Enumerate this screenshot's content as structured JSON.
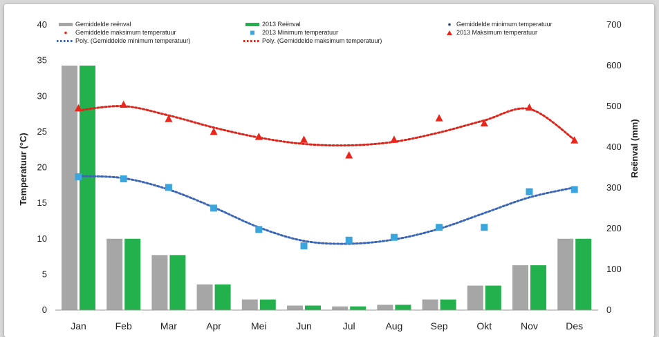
{
  "chart_data": {
    "type": "bar",
    "title": "",
    "categories": [
      "Jan",
      "Feb",
      "Mar",
      "Apr",
      "Mei",
      "Jun",
      "Jul",
      "Aug",
      "Sep",
      "Okt",
      "Nov",
      "Des"
    ],
    "ylabel_left": "Temperatuur (°C)",
    "ylabel_right": "Reënval (mm)",
    "ylim_left": [
      0,
      40
    ],
    "ylim_right": [
      0,
      700
    ],
    "yticks_left": [
      "0",
      "5",
      "10",
      "15",
      "20",
      "25",
      "30",
      "35",
      "40"
    ],
    "yticks_right": [
      "0",
      "100",
      "200",
      "300",
      "400",
      "500",
      "600",
      "700"
    ],
    "grid": false,
    "legend_position": "top",
    "bars": [
      {
        "name": "Gemiddelde reënval",
        "axis": "right",
        "color": "#a6a6a6",
        "values": [
          600,
          175,
          135,
          63,
          26,
          11,
          9,
          13,
          26,
          60,
          110,
          175
        ]
      },
      {
        "name": "2013 Reënval",
        "axis": "right",
        "color": "#22b14c",
        "values": [
          600,
          175,
          135,
          63,
          26,
          11,
          9,
          13,
          26,
          60,
          110,
          175
        ]
      }
    ],
    "points": [
      {
        "name": "Gemiddelde minimum temperatuur",
        "axis": "left",
        "marker": "dot",
        "color": "#1f3864",
        "values": []
      },
      {
        "name": "Gemiddelde maksimum temperatuur",
        "axis": "left",
        "marker": "dot",
        "color": "#e8261c",
        "values": []
      },
      {
        "name": "2013 Minimum temperatuur",
        "axis": "left",
        "marker": "square",
        "color": "#3aa6dd",
        "values": [
          18.7,
          18.4,
          17.2,
          14.3,
          11.3,
          9.0,
          9.8,
          10.2,
          11.6,
          11.6,
          16.6,
          16.9
        ]
      },
      {
        "name": "2013 Maksimum temperatuur",
        "axis": "left",
        "marker": "triangle",
        "color": "#e8261c",
        "values": [
          28.3,
          28.8,
          26.8,
          25.0,
          24.3,
          23.9,
          21.7,
          23.9,
          26.9,
          26.2,
          28.4,
          23.8
        ]
      }
    ],
    "trendlines": [
      {
        "name": "Poly. (Gemiddelde minimum temperatuur)",
        "axis": "left",
        "color": "#3a66b5",
        "values": [
          18.8,
          18.5,
          16.9,
          14.4,
          11.6,
          9.7,
          9.3,
          9.9,
          11.4,
          13.6,
          15.8,
          17.2
        ]
      },
      {
        "name": "Poly. (Gemiddelde maksimum temperatuur)",
        "axis": "left",
        "color": "#d9261c",
        "values": [
          28.0,
          28.6,
          27.3,
          25.6,
          24.2,
          23.3,
          23.1,
          23.6,
          24.9,
          26.6,
          28.2,
          23.9
        ]
      }
    ]
  },
  "colors": {
    "frame": "#d9d9d9",
    "text": "#222222"
  }
}
